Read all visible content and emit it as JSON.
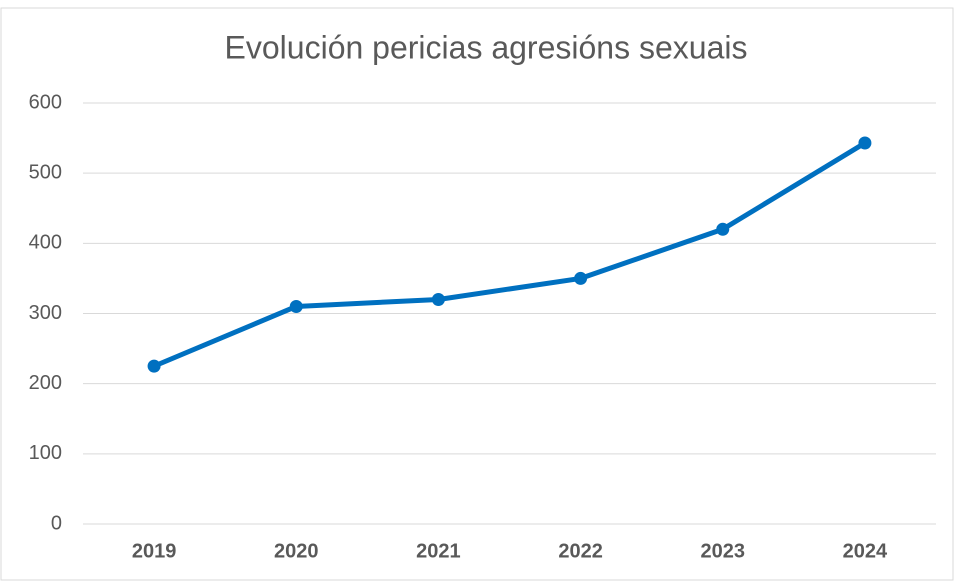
{
  "chart_data": {
    "type": "line",
    "title": "Evolución pericias agresións sexuais",
    "categories": [
      "2019",
      "2020",
      "2021",
      "2022",
      "2023",
      "2024"
    ],
    "values": [
      225,
      310,
      320,
      350,
      420,
      543
    ],
    "color": "#0070c0",
    "ylim": [
      0,
      600
    ],
    "yticks": [
      0,
      100,
      200,
      300,
      400,
      500,
      600
    ],
    "grid": true
  }
}
